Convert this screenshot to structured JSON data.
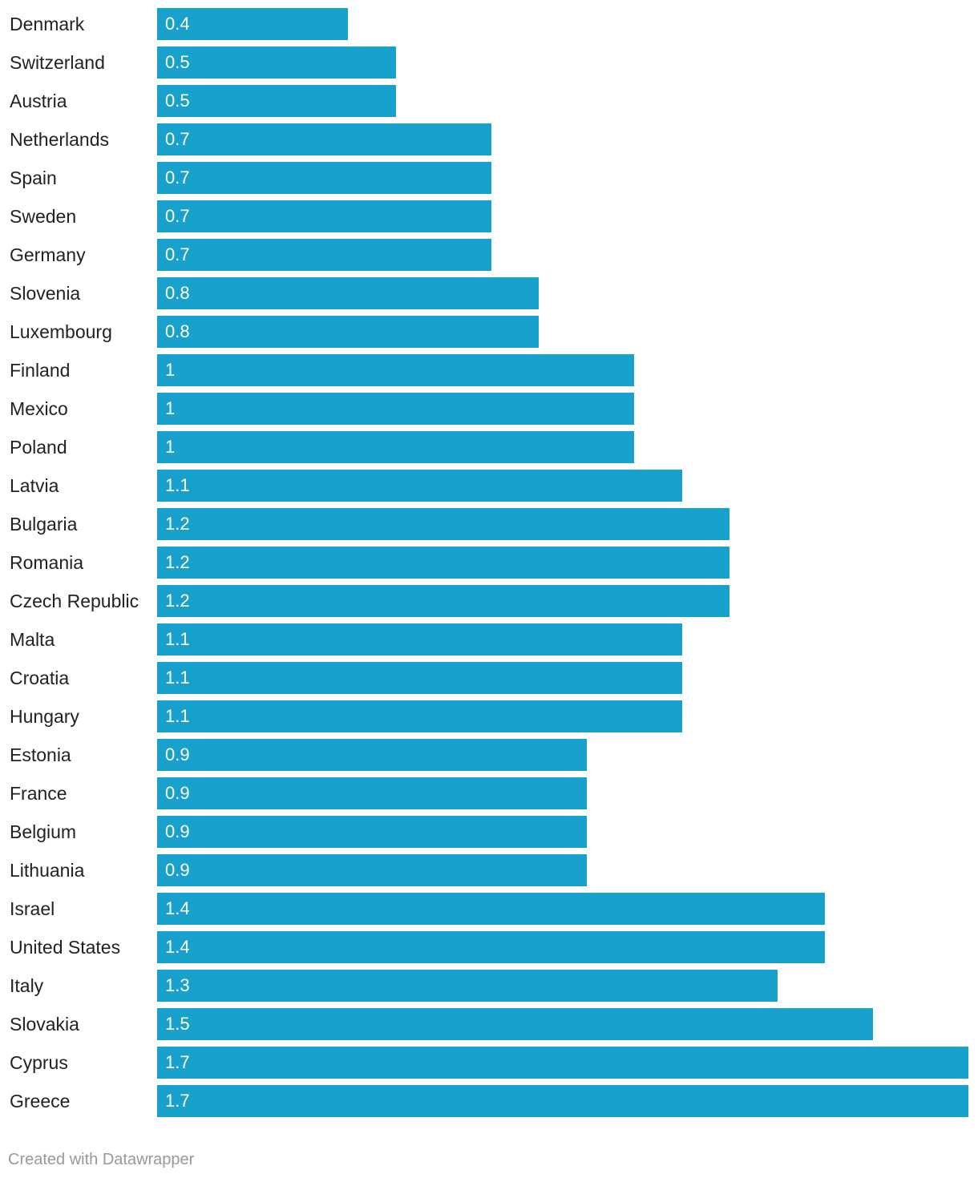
{
  "colors": {
    "bar": "#18a1cd",
    "label": "#222222",
    "footer": "#999999"
  },
  "footer": {
    "text": "Created with Datawrapper"
  },
  "chart_data": {
    "type": "bar",
    "orientation": "horizontal",
    "title": "",
    "xlabel": "",
    "ylabel": "",
    "xlim": [
      0,
      1.7
    ],
    "grid": false,
    "categories": [
      "Denmark",
      "Switzerland",
      "Austria",
      "Netherlands",
      "Spain",
      "Sweden",
      "Germany",
      "Slovenia",
      "Luxembourg",
      "Finland",
      "Mexico",
      "Poland",
      "Latvia",
      "Bulgaria",
      "Romania",
      "Czech Republic",
      "Malta",
      "Croatia",
      "Hungary",
      "Estonia",
      "France",
      "Belgium",
      "Lithuania",
      "Israel",
      "United States",
      "Italy",
      "Slovakia",
      "Cyprus",
      "Greece"
    ],
    "values": [
      0.4,
      0.5,
      0.5,
      0.7,
      0.7,
      0.7,
      0.7,
      0.8,
      0.8,
      1,
      1,
      1,
      1.1,
      1.2,
      1.2,
      1.2,
      1.1,
      1.1,
      1.1,
      0.9,
      0.9,
      0.9,
      0.9,
      1.4,
      1.4,
      1.3,
      1.5,
      1.7,
      1.7
    ],
    "value_labels": [
      "0.4",
      "0.5",
      "0.5",
      "0.7",
      "0.7",
      "0.7",
      "0.7",
      "0.8",
      "0.8",
      "1",
      "1",
      "1",
      "1.1",
      "1.2",
      "1.2",
      "1.2",
      "1.1",
      "1.1",
      "1.1",
      "0.9",
      "0.9",
      "0.9",
      "0.9",
      "1.4",
      "1.4",
      "1.3",
      "1.5",
      "1.7",
      "1.7"
    ]
  }
}
